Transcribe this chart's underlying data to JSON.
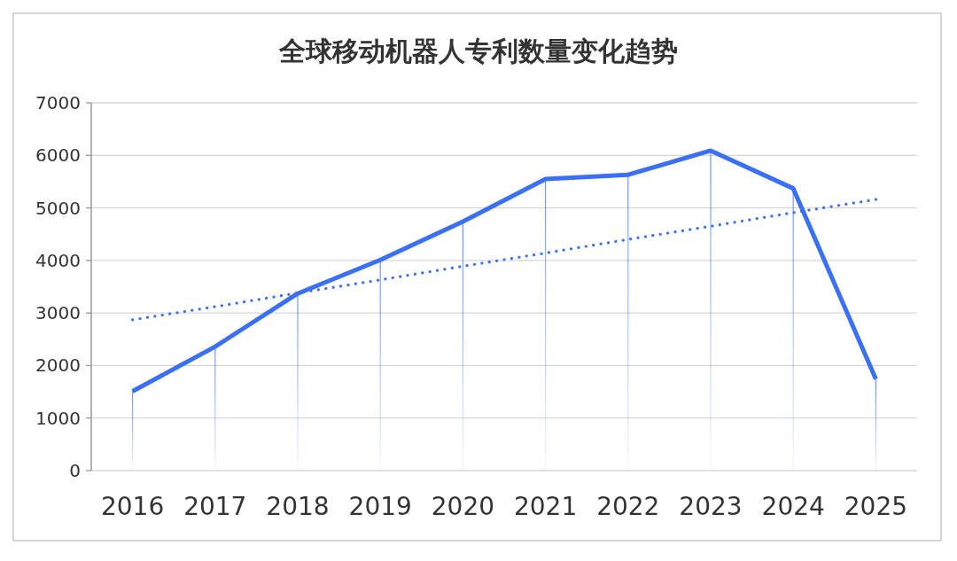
{
  "chart_data": {
    "type": "line",
    "title": "全球移动机器人专利数量变化趋势",
    "categories": [
      "2016",
      "2017",
      "2018",
      "2019",
      "2020",
      "2021",
      "2022",
      "2023",
      "2024",
      "2025"
    ],
    "series": [
      {
        "color": "#3a6ff7",
        "line_style": "solid",
        "values": [
          1510,
          2360,
          3370,
          4010,
          4740,
          5550,
          5630,
          6090,
          5370,
          1740
        ]
      },
      {
        "color": "#3a6ff7",
        "line_style": "dotted",
        "values": [
          2870,
          3120,
          3380,
          3630,
          3890,
          4140,
          4400,
          4650,
          4910,
          5160
        ]
      }
    ],
    "ylim": [
      0,
      7000
    ],
    "yticks": [
      0,
      1000,
      2000,
      3000,
      4000,
      5000,
      6000,
      7000
    ],
    "grid": true,
    "marker": "none"
  }
}
